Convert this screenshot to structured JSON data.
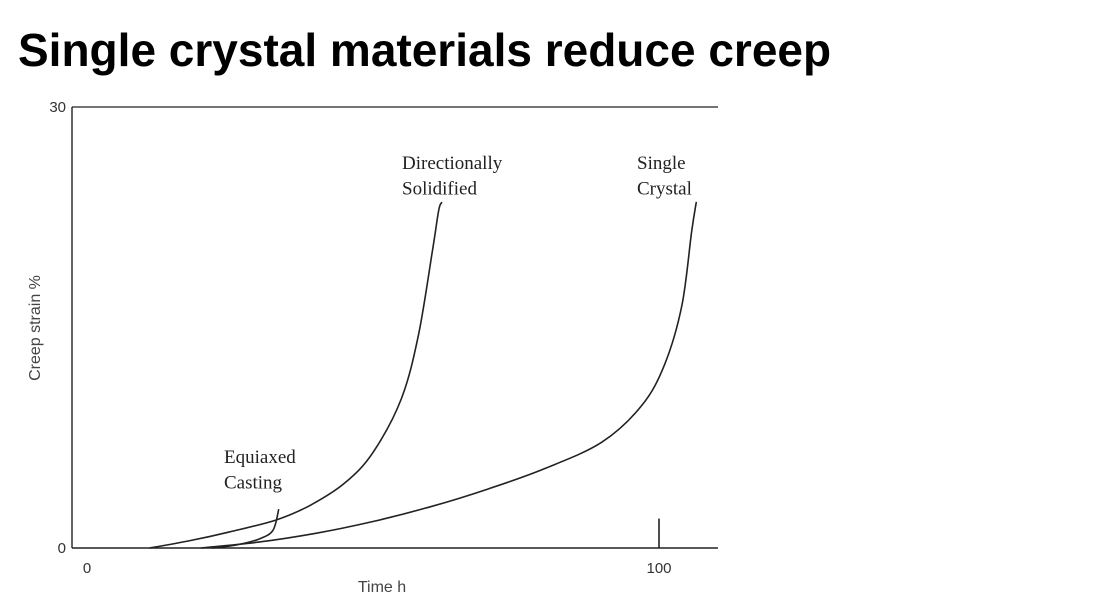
{
  "slide": {
    "title": "Single crystal materials reduce creep"
  },
  "chart_data": {
    "type": "line",
    "title": "",
    "xlabel": "Time h",
    "ylabel": "Creep strain %",
    "xlim": [
      0,
      110
    ],
    "ylim": [
      0,
      30
    ],
    "x_ticks": [
      {
        "value": 0,
        "label": "0"
      },
      {
        "value": 100,
        "label": "100"
      }
    ],
    "y_ticks": [
      {
        "value": 0,
        "label": "0"
      },
      {
        "value": 30,
        "label": "30"
      }
    ],
    "marker": {
      "x": 100,
      "y_from": 0,
      "y_to": 2
    },
    "grid": false,
    "legend": "none",
    "line_color": "#222222",
    "series": [
      {
        "name": "Equiaxed Casting",
        "label_lines": [
          "Equiaxed",
          "Casting"
        ],
        "points": [
          [
            22,
            0
          ],
          [
            26,
            0.2
          ],
          [
            30,
            0.6
          ],
          [
            32.5,
            1.2
          ],
          [
            33.5,
            2.6
          ]
        ]
      },
      {
        "name": "Directionally Solidified",
        "label_lines": [
          "Directionally",
          "Solidified"
        ],
        "points": [
          [
            11,
            0
          ],
          [
            18,
            0.5
          ],
          [
            25,
            1.1
          ],
          [
            33,
            1.9
          ],
          [
            39,
            2.9
          ],
          [
            45,
            4.4
          ],
          [
            50,
            6.5
          ],
          [
            55,
            10.2
          ],
          [
            58,
            14.6
          ],
          [
            60.5,
            20.5
          ],
          [
            61.5,
            23.0
          ],
          [
            62,
            23.5
          ]
        ]
      },
      {
        "name": "Single Crystal",
        "label_lines": [
          "Single",
          "Crystal"
        ],
        "points": [
          [
            20,
            0
          ],
          [
            30,
            0.4
          ],
          [
            40,
            1.0
          ],
          [
            50,
            1.8
          ],
          [
            60,
            2.8
          ],
          [
            70,
            4.0
          ],
          [
            80,
            5.4
          ],
          [
            90,
            7.2
          ],
          [
            97,
            9.7
          ],
          [
            101,
            12.5
          ],
          [
            104,
            16.5
          ],
          [
            105.7,
            21.5
          ],
          [
            106.5,
            23.5
          ]
        ]
      }
    ]
  }
}
